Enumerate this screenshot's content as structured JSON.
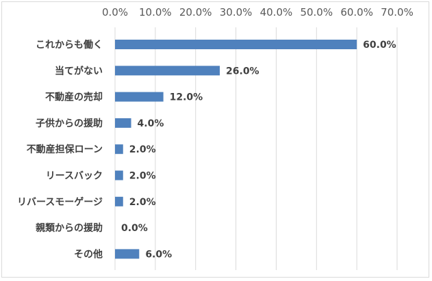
{
  "chart_data": {
    "type": "bar",
    "orientation": "horizontal",
    "categories": [
      "これからも働く",
      "当てがない",
      "不動産の売却",
      "子供からの援助",
      "不動産担保ローン",
      "リースバック",
      "リバースモーゲージ",
      "親類からの援助",
      "その他"
    ],
    "values": [
      60.0,
      26.0,
      12.0,
      4.0,
      2.0,
      2.0,
      2.0,
      0.0,
      6.0
    ],
    "value_labels": [
      "60.0%",
      "26.0%",
      "12.0%",
      "4.0%",
      "2.0%",
      "2.0%",
      "2.0%",
      "0.0%",
      "6.0%"
    ],
    "x_ticks": [
      0,
      10,
      20,
      30,
      40,
      50,
      60,
      70
    ],
    "x_tick_labels": [
      "0.0%",
      "10.0%",
      "20.0%",
      "30.0%",
      "40.0%",
      "50.0%",
      "60.0%",
      "70.0%"
    ],
    "xlim": [
      0,
      70
    ],
    "x_axis_position": "top",
    "grid": true,
    "legend": "none",
    "bar_color": "#4f81bd"
  }
}
